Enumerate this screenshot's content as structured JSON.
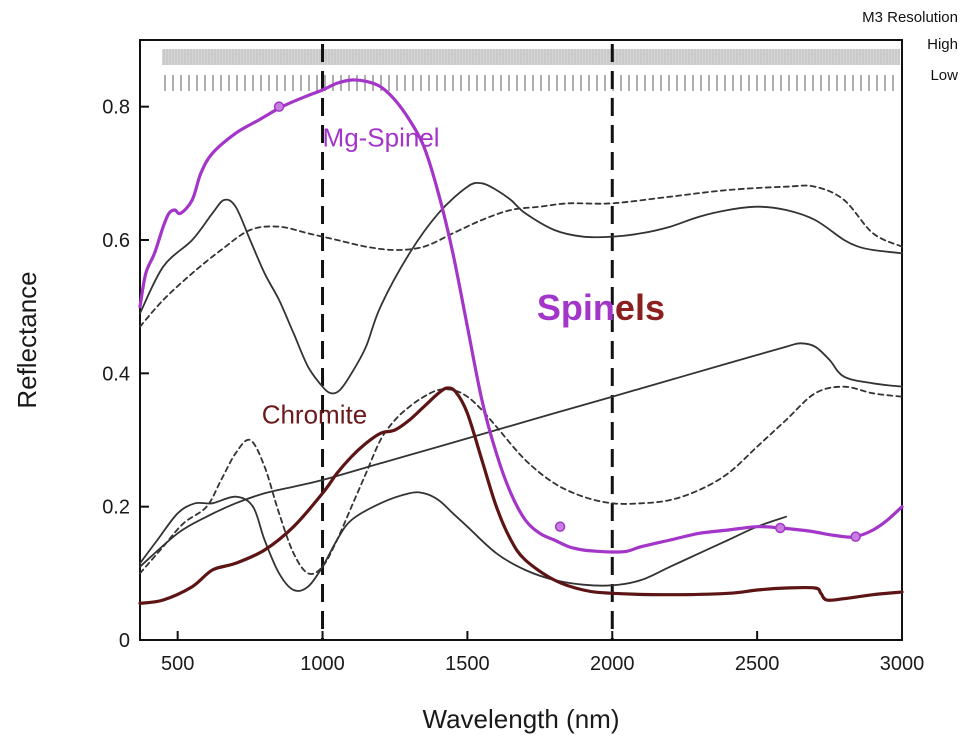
{
  "chart_data": {
    "type": "line",
    "xlabel": "Wavelength (nm)",
    "ylabel": "Reflectance",
    "xlim": [
      370,
      3000
    ],
    "ylim": [
      0,
      0.9
    ],
    "xticks": [
      500,
      1000,
      1500,
      2000,
      2500,
      3000
    ],
    "yticks": [
      0,
      0.2,
      0.4,
      0.6,
      0.8
    ],
    "ytick_labels": [
      "0",
      "0.2",
      "0.4",
      "0.6",
      "0.8"
    ],
    "grid": false,
    "vlines": [
      1000,
      2000
    ],
    "resolution_bar": {
      "title": "M3 Resolution",
      "high_label": "High",
      "low_label": "Low"
    },
    "annotations": [
      {
        "text": "Mg-Spinel",
        "x": 1000,
        "y": 0.74,
        "color": "#a335c8"
      },
      {
        "text": "Chromite",
        "x": 790,
        "y": 0.325,
        "color": "#6b1b1b"
      },
      {
        "text_part1": "Spin",
        "text_part2": "els",
        "x": 1740,
        "y": 0.48,
        "color1": "#a335c8",
        "color2": "#8a2020"
      }
    ],
    "series": [
      {
        "color": "#a335c8",
        "width": 3.2,
        "dash": "",
        "markers": true,
        "x": [
          370,
          390,
          420,
          450,
          470,
          490,
          510,
          550,
          580,
          620,
          700,
          780,
          860,
          940,
          1000,
          1050,
          1100,
          1150,
          1200,
          1250,
          1300,
          1350,
          1400,
          1450,
          1500,
          1550,
          1600,
          1650,
          1700,
          1750,
          1800,
          1850,
          1900,
          1950,
          2000,
          2050,
          2100,
          2200,
          2300,
          2400,
          2500,
          2580,
          2650,
          2700,
          2750,
          2800,
          2840,
          2900,
          2950,
          3000
        ],
        "y": [
          0.5,
          0.55,
          0.58,
          0.62,
          0.64,
          0.645,
          0.64,
          0.66,
          0.7,
          0.73,
          0.76,
          0.78,
          0.8,
          0.815,
          0.825,
          0.835,
          0.84,
          0.838,
          0.83,
          0.81,
          0.78,
          0.74,
          0.67,
          0.58,
          0.47,
          0.36,
          0.28,
          0.22,
          0.18,
          0.16,
          0.15,
          0.14,
          0.135,
          0.133,
          0.132,
          0.133,
          0.14,
          0.15,
          0.16,
          0.165,
          0.17,
          0.168,
          0.165,
          0.162,
          0.158,
          0.155,
          0.155,
          0.165,
          0.18,
          0.2
        ],
        "marker_x": [
          850,
          1820,
          2580,
          2840
        ],
        "marker_y": [
          0.8,
          0.17,
          0.168,
          0.155
        ]
      },
      {
        "color": "#5c1414",
        "width": 3.2,
        "dash": "",
        "markers": false,
        "x": [
          370,
          450,
          550,
          620,
          700,
          800,
          900,
          1000,
          1050,
          1100,
          1150,
          1200,
          1250,
          1300,
          1350,
          1400,
          1430,
          1460,
          1500,
          1550,
          1600,
          1650,
          1700,
          1800,
          1900,
          2000,
          2200,
          2400,
          2500,
          2600,
          2700,
          2720,
          2740,
          2800,
          2900,
          3000
        ],
        "y": [
          0.055,
          0.06,
          0.08,
          0.105,
          0.115,
          0.135,
          0.17,
          0.22,
          0.25,
          0.275,
          0.295,
          0.31,
          0.315,
          0.33,
          0.35,
          0.37,
          0.378,
          0.372,
          0.34,
          0.27,
          0.2,
          0.15,
          0.12,
          0.09,
          0.075,
          0.07,
          0.068,
          0.07,
          0.075,
          0.078,
          0.078,
          0.07,
          0.06,
          0.062,
          0.068,
          0.072
        ]
      },
      {
        "color": "#333333",
        "width": 1.8,
        "dash": "",
        "markers": false,
        "x": [
          370,
          450,
          550,
          620,
          660,
          700,
          750,
          800,
          850,
          900,
          950,
          1000,
          1030,
          1060,
          1100,
          1150,
          1200,
          1300,
          1400,
          1500,
          1550,
          1600,
          1650,
          1700,
          1800,
          1900,
          2000,
          2100,
          2200,
          2300,
          2400,
          2500,
          2600,
          2700,
          2800,
          2850,
          2900,
          3000
        ],
        "y": [
          0.49,
          0.56,
          0.6,
          0.64,
          0.66,
          0.65,
          0.6,
          0.55,
          0.51,
          0.46,
          0.41,
          0.38,
          0.37,
          0.375,
          0.4,
          0.44,
          0.5,
          0.58,
          0.64,
          0.68,
          0.685,
          0.675,
          0.66,
          0.64,
          0.615,
          0.605,
          0.605,
          0.61,
          0.62,
          0.635,
          0.645,
          0.65,
          0.645,
          0.63,
          0.6,
          0.59,
          0.585,
          0.58
        ]
      },
      {
        "color": "#333333",
        "width": 1.8,
        "dash": "5,4",
        "markers": false,
        "x": [
          370,
          450,
          550,
          650,
          750,
          850,
          950,
          1050,
          1150,
          1250,
          1350,
          1450,
          1550,
          1650,
          1750,
          1850,
          2000,
          2200,
          2400,
          2600,
          2700,
          2800,
          2900,
          3000
        ],
        "y": [
          0.47,
          0.51,
          0.55,
          0.585,
          0.615,
          0.62,
          0.61,
          0.6,
          0.59,
          0.585,
          0.59,
          0.61,
          0.63,
          0.645,
          0.65,
          0.655,
          0.655,
          0.665,
          0.675,
          0.68,
          0.68,
          0.66,
          0.61,
          0.59
        ]
      },
      {
        "color": "#333333",
        "width": 1.8,
        "dash": "",
        "markers": false,
        "x": [
          370,
          500,
          600,
          700,
          800,
          900,
          1000,
          1200,
          1400,
          1600,
          1800,
          2000,
          2200,
          2400,
          2600,
          2650,
          2700,
          2750,
          2800,
          2900,
          3000
        ],
        "y": [
          0.11,
          0.16,
          0.185,
          0.205,
          0.22,
          0.23,
          0.24,
          0.265,
          0.29,
          0.315,
          0.34,
          0.365,
          0.39,
          0.415,
          0.44,
          0.445,
          0.44,
          0.42,
          0.395,
          0.385,
          0.38
        ]
      },
      {
        "color": "#333333",
        "width": 1.8,
        "dash": "5,4",
        "markers": false,
        "x": [
          370,
          450,
          520,
          600,
          650,
          700,
          750,
          800,
          850,
          900,
          950,
          1000,
          1050,
          1100,
          1150,
          1200,
          1250,
          1300,
          1350,
          1400,
          1450,
          1500,
          1550,
          1600,
          1700,
          1800,
          1900,
          2000,
          2100,
          2200,
          2300,
          2400,
          2500,
          2600,
          2700,
          2800,
          2900,
          3000
        ],
        "y": [
          0.1,
          0.14,
          0.175,
          0.2,
          0.24,
          0.28,
          0.3,
          0.26,
          0.19,
          0.13,
          0.1,
          0.11,
          0.15,
          0.2,
          0.25,
          0.3,
          0.33,
          0.35,
          0.365,
          0.375,
          0.375,
          0.365,
          0.345,
          0.32,
          0.27,
          0.235,
          0.215,
          0.205,
          0.205,
          0.21,
          0.225,
          0.25,
          0.29,
          0.33,
          0.37,
          0.38,
          0.37,
          0.365
        ]
      },
      {
        "color": "#333333",
        "width": 1.8,
        "dash": "",
        "markers": false,
        "x": [
          370,
          430,
          500,
          560,
          620,
          700,
          760,
          800,
          850,
          900,
          950,
          1000,
          1050,
          1100,
          1200,
          1300,
          1350,
          1400,
          1450,
          1500,
          1600,
          1700,
          1800,
          1900,
          2000,
          2100,
          2200,
          2300,
          2400,
          2500,
          2600
        ],
        "y": [
          0.115,
          0.15,
          0.19,
          0.205,
          0.205,
          0.215,
          0.2,
          0.15,
          0.1,
          0.075,
          0.08,
          0.11,
          0.15,
          0.18,
          0.205,
          0.22,
          0.22,
          0.21,
          0.19,
          0.17,
          0.13,
          0.105,
          0.09,
          0.083,
          0.082,
          0.09,
          0.11,
          0.13,
          0.15,
          0.17,
          0.185
        ]
      }
    ]
  }
}
